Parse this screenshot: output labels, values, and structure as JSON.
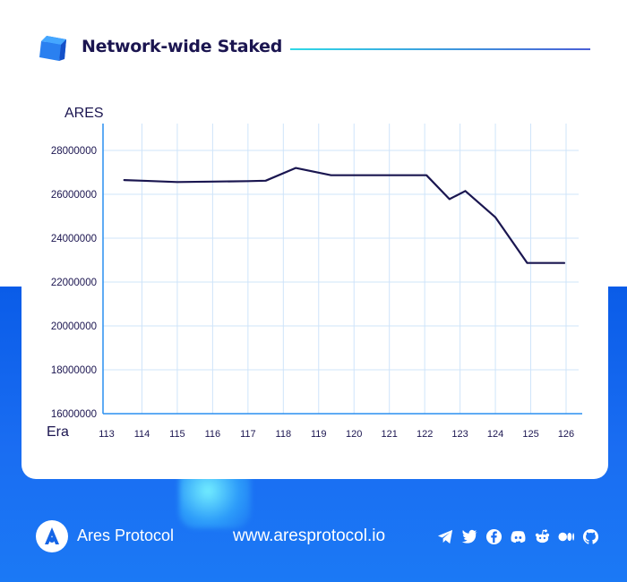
{
  "header": {
    "title": "Network-wide Staked"
  },
  "footer": {
    "brand": "Ares Protocol",
    "url": "www.aresprotocol.io",
    "social_icons": [
      "telegram-icon",
      "twitter-icon",
      "facebook-icon",
      "discord-icon",
      "reddit-icon",
      "medium-icon",
      "github-icon"
    ]
  },
  "chart_data": {
    "type": "line",
    "xlabel": "Era",
    "ylabel": "ARES",
    "x": [
      113.5,
      114,
      115,
      116,
      117,
      117.5,
      118.35,
      119.35,
      120,
      121,
      122.05,
      122.7,
      123.15,
      124,
      124.9,
      125.95
    ],
    "x_ticks": [
      "113",
      "114",
      "115",
      "116",
      "117",
      "118",
      "119",
      "120",
      "121",
      "122",
      "123",
      "124",
      "125",
      "126"
    ],
    "y_ticks": [
      "16000000",
      "18000000",
      "20000000",
      "22000000",
      "24000000",
      "26000000",
      "28000000"
    ],
    "series": [
      {
        "color": "#1a1650",
        "values": [
          26650000,
          26620000,
          26560000,
          26580000,
          26600000,
          26620000,
          27200000,
          26870000,
          26870000,
          26870000,
          26870000,
          25780000,
          26150000,
          24950000,
          22870000,
          22870000
        ]
      }
    ],
    "xlim": [
      113,
      126
    ],
    "ylim": [
      16000000,
      28000000
    ],
    "grid": true,
    "colors": {
      "axis": "#2a8ff0",
      "grid": "#cfe4fa",
      "line": "#1a1650"
    }
  }
}
